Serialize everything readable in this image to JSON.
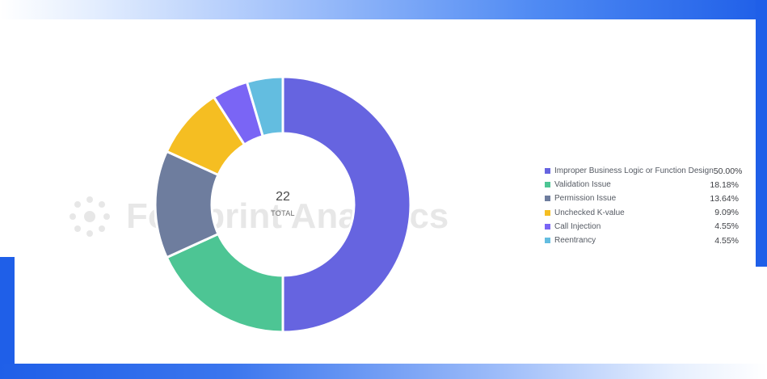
{
  "chart_data": {
    "type": "pie",
    "total": "22",
    "total_label": "TOTAL",
    "slices": [
      {
        "label": "Improper Business Logic or Function Design",
        "value": 11,
        "percent": "50.00%",
        "color": "#6664e0"
      },
      {
        "label": "Validation Issue",
        "value": 4,
        "percent": "18.18%",
        "color": "#4dc594"
      },
      {
        "label": "Permission Issue",
        "value": 3,
        "percent": "13.64%",
        "color": "#6e7d9e"
      },
      {
        "label": "Unchecked K-value",
        "value": 2,
        "percent": "9.09%",
        "color": "#f5be22"
      },
      {
        "label": "Call Injection",
        "value": 1,
        "percent": "4.55%",
        "color": "#7a65f5"
      },
      {
        "label": "Reentrancy",
        "value": 1,
        "percent": "4.55%",
        "color": "#63bde0"
      }
    ],
    "legend_position": "right"
  },
  "watermark": {
    "text": "Footprint Analytics"
  }
}
